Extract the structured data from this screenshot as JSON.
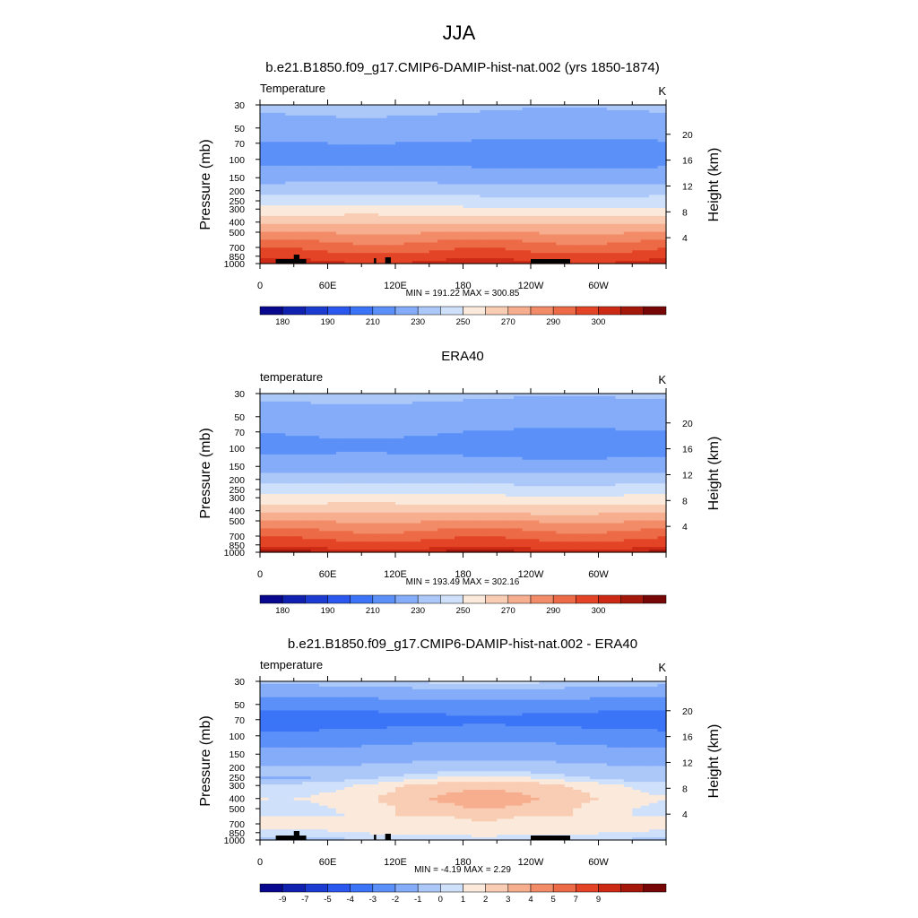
{
  "figure": {
    "title": "JJA",
    "units": "K",
    "colorbar_units": "K"
  },
  "colors": {
    "abs_palette": [
      "#08088e",
      "#1021b0",
      "#1c3bd0",
      "#2a58ef",
      "#3b74f7",
      "#5a90f8",
      "#84acf8",
      "#abc8f9",
      "#cfe0fb",
      "#fbeadb",
      "#f9cdb4",
      "#f6ae8f",
      "#f28b67",
      "#ec6a45",
      "#e34426",
      "#cd2a16",
      "#a4170b",
      "#760706"
    ],
    "diff_palette": [
      "#08088e",
      "#1021b0",
      "#1c3bd0",
      "#2a58ef",
      "#3b74f7",
      "#5a90f8",
      "#84acf8",
      "#abc8f9",
      "#cfe0fb",
      "#fbeadb",
      "#f9cdb4",
      "#f6ae8f",
      "#f28b67",
      "#ec6a45",
      "#e34426",
      "#cd2a16",
      "#a4170b",
      "#760706"
    ],
    "topography": "#000000",
    "frame": "#000000"
  },
  "chart_data": [
    {
      "type": "contour",
      "panel_title": "b.e21.B1850.f09_g17.CMIP6-DAMIP-hist-nat.002 (yrs 1850-1874)",
      "left_label": "Temperature",
      "right_label": "K",
      "ylabel": "Pressure (mb)",
      "y2label": "Height (km)",
      "xlim": [
        0,
        360
      ],
      "ylim_mb": [
        1000,
        30
      ],
      "x_ticks": [
        "0",
        "60E",
        "120E",
        "180",
        "120W",
        "60W"
      ],
      "y_ticks": [
        "30",
        "50",
        "70",
        "100",
        "150",
        "200",
        "250",
        "300",
        "400",
        "500",
        "700",
        "850",
        "1000"
      ],
      "y2_ticks": [
        "4",
        "8",
        "12",
        "16",
        "20"
      ],
      "stats": "MIN = 191.22  MAX = 300.85",
      "colorbar_labels": [
        "180",
        "190",
        "210",
        "230",
        "250",
        "270",
        "290",
        "300"
      ],
      "levels": [
        30,
        50,
        70,
        100,
        150,
        200,
        250,
        300,
        400,
        500,
        700,
        850,
        1000
      ],
      "zonal_mean_profile_K": [
        212,
        206,
        199,
        196,
        206,
        215,
        225,
        232,
        248,
        260,
        276,
        285,
        293
      ]
    },
    {
      "type": "contour",
      "panel_title": "ERA40",
      "left_label": "temperature",
      "right_label": "K",
      "ylabel": "Pressure (mb)",
      "y2label": "Height (km)",
      "xlim": [
        0,
        360
      ],
      "ylim_mb": [
        1000,
        30
      ],
      "x_ticks": [
        "0",
        "60E",
        "120E",
        "180",
        "120W",
        "60W"
      ],
      "y_ticks": [
        "30",
        "50",
        "70",
        "100",
        "150",
        "200",
        "250",
        "300",
        "400",
        "500",
        "700",
        "850",
        "1000"
      ],
      "y2_ticks": [
        "4",
        "8",
        "12",
        "16",
        "20"
      ],
      "stats": "MIN = 193.49  MAX = 302.16",
      "colorbar_labels": [
        "180",
        "190",
        "210",
        "230",
        "250",
        "270",
        "290",
        "300"
      ],
      "levels": [
        30,
        50,
        70,
        100,
        150,
        200,
        250,
        300,
        400,
        500,
        700,
        850,
        1000
      ],
      "zonal_mean_profile_K": [
        212,
        205,
        200,
        197,
        204,
        216,
        225,
        233,
        247,
        260,
        276,
        286,
        295
      ]
    },
    {
      "type": "contour",
      "panel_title": "b.e21.B1850.f09_g17.CMIP6-DAMIP-hist-nat.002 - ERA40",
      "left_label": "temperature",
      "right_label": "K",
      "ylabel": "Pressure (mb)",
      "y2label": "Height (km)",
      "xlim": [
        0,
        360
      ],
      "ylim_mb": [
        1000,
        30
      ],
      "x_ticks": [
        "0",
        "60E",
        "120E",
        "180",
        "120W",
        "60W"
      ],
      "y_ticks": [
        "30",
        "50",
        "70",
        "100",
        "150",
        "200",
        "250",
        "300",
        "400",
        "500",
        "700",
        "850",
        "1000"
      ],
      "y2_ticks": [
        "4",
        "8",
        "12",
        "16",
        "20"
      ],
      "stats": "MIN = -4.19  MAX =  2.29",
      "colorbar_labels": [
        "-9",
        "-7",
        "-5",
        "-4",
        "-3",
        "-2",
        "-1",
        "0",
        "1",
        "2",
        "3",
        "4",
        "5",
        "7",
        "9"
      ],
      "levels": [
        30,
        50,
        70,
        100,
        150,
        200,
        250,
        300,
        400,
        500,
        700,
        850,
        1000
      ],
      "zonal_mean_difference_K": [
        -0.5,
        -2.5,
        -3.5,
        -2.5,
        -1.5,
        -0.8,
        -0.5,
        0.3,
        0.6,
        0.4,
        0.3,
        0.1,
        -0.5
      ]
    }
  ]
}
